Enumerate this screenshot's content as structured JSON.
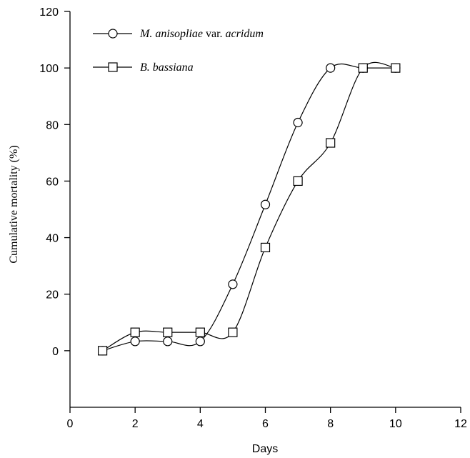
{
  "chart_data": {
    "type": "line",
    "title": "",
    "xlabel": "Days",
    "ylabel": "Cumulative mortality (%)",
    "xlim": [
      0,
      12
    ],
    "ylim": [
      -20,
      120
    ],
    "xticks": [
      "0",
      "2",
      "4",
      "6",
      "8",
      "10",
      "12"
    ],
    "yticks": [
      "0",
      "20",
      "40",
      "60",
      "80",
      "100",
      "120"
    ],
    "grid": false,
    "legend_position": "top-left",
    "series": [
      {
        "name_parts": [
          {
            "text": "M. anisopliae",
            "italic": true
          },
          {
            "text": " var. ",
            "italic": false
          },
          {
            "text": "acridum",
            "italic": true
          }
        ],
        "marker": "circle",
        "x": [
          1,
          2,
          3,
          4,
          5,
          6,
          7,
          8,
          9,
          10
        ],
        "y": [
          0,
          3.3,
          3.3,
          3.3,
          23.5,
          51.7,
          80.7,
          100,
          100,
          100
        ]
      },
      {
        "name_parts": [
          {
            "text": "B. bassiana",
            "italic": true
          }
        ],
        "marker": "square",
        "x": [
          1,
          2,
          3,
          4,
          5,
          6,
          7,
          8,
          9,
          10
        ],
        "y": [
          0,
          6.5,
          6.5,
          6.5,
          6.5,
          36.5,
          60,
          73.5,
          100,
          100
        ]
      }
    ]
  }
}
